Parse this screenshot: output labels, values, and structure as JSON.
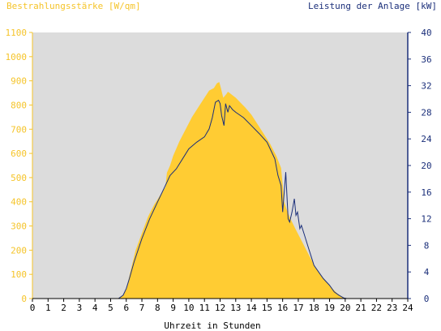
{
  "chart_data": {
    "type": "area",
    "y_left_label": "Bestrahlungsstärke [W/qm]",
    "y_right_label": "Leistung der Anlage [kW]",
    "x_label": "Uhrzeit in Stunden",
    "x_range": [
      0,
      24
    ],
    "y_left_range": [
      0,
      1100
    ],
    "y_right_range": [
      0,
      40
    ],
    "x_ticks": [
      "0",
      "1",
      "2",
      "3",
      "4",
      "5",
      "6",
      "7",
      "8",
      "9",
      "10",
      "11",
      "12",
      "13",
      "14",
      "15",
      "16",
      "17",
      "18",
      "19",
      "20",
      "21",
      "22",
      "23",
      "24"
    ],
    "y_left_ticks": [
      "0",
      "100",
      "200",
      "300",
      "400",
      "500",
      "600",
      "700",
      "800",
      "900",
      "1000",
      "1100"
    ],
    "y_right_ticks": [
      "0",
      "4",
      "8",
      "12",
      "16",
      "20",
      "24",
      "28",
      "32",
      "36",
      "40"
    ],
    "grid": false,
    "colors": {
      "background": "#dcdcdc",
      "irradiance_fill": "#ffcc33",
      "power_line": "#1b2f7a",
      "left_axis": "#f5c42a",
      "right_axis": "#1b2f7a"
    },
    "series": [
      {
        "axis": "left",
        "style": "area",
        "x": [
          0,
          5.4,
          5.6,
          5.8,
          6.0,
          6.3,
          6.6,
          7.0,
          7.4,
          7.8,
          8.2,
          8.5,
          8.6,
          8.8,
          9.0,
          9.4,
          9.8,
          10.2,
          10.6,
          11.0,
          11.3,
          11.6,
          11.8,
          11.95,
          12.05,
          12.2,
          12.4,
          12.5,
          12.6,
          12.8,
          13.0,
          13.3,
          13.6,
          14.0,
          14.4,
          14.8,
          15.2,
          15.6,
          15.9,
          16.0,
          16.1,
          16.2,
          16.3,
          16.5,
          16.8,
          17.2,
          17.6,
          18.0,
          18.4,
          18.8,
          19.2,
          19.5,
          19.8,
          20.0,
          24
        ],
        "y": [
          0,
          0,
          5,
          15,
          40,
          120,
          200,
          270,
          340,
          390,
          430,
          460,
          520,
          550,
          590,
          650,
          700,
          750,
          790,
          830,
          860,
          870,
          890,
          895,
          870,
          830,
          845,
          855,
          850,
          840,
          830,
          810,
          790,
          760,
          720,
          680,
          640,
          590,
          540,
          470,
          400,
          380,
          360,
          330,
          290,
          240,
          190,
          140,
          100,
          70,
          40,
          20,
          8,
          0,
          0
        ]
      },
      {
        "axis": "right",
        "style": "line",
        "x": [
          0,
          5.5,
          5.8,
          6.0,
          6.2,
          6.5,
          7.0,
          7.5,
          8.0,
          8.4,
          8.8,
          9.2,
          9.6,
          10.0,
          10.5,
          11.0,
          11.3,
          11.5,
          11.7,
          11.9,
          12.0,
          12.1,
          12.25,
          12.35,
          12.5,
          12.6,
          12.8,
          13.0,
          13.5,
          14.0,
          14.5,
          15.0,
          15.3,
          15.5,
          15.7,
          15.9,
          16.0,
          16.1,
          16.2,
          16.35,
          16.45,
          16.6,
          16.75,
          16.85,
          16.95,
          17.1,
          17.2,
          17.4,
          17.6,
          17.8,
          18.0,
          18.3,
          18.6,
          19.0,
          19.3,
          19.6,
          19.9,
          20.1,
          24
        ],
        "y": [
          0,
          0,
          0.5,
          1.5,
          3,
          5.5,
          9,
          12,
          14.5,
          16.5,
          18.5,
          19.5,
          21,
          22.5,
          23.5,
          24.3,
          25.5,
          27.2,
          29.5,
          29.8,
          29.3,
          27.5,
          26.0,
          29.3,
          28.0,
          29.0,
          28.4,
          28.0,
          27.2,
          26.0,
          24.8,
          23.5,
          22.0,
          21.0,
          18.5,
          17.0,
          13.0,
          16.0,
          19.0,
          12.0,
          11.5,
          13.0,
          15.0,
          12.5,
          13.0,
          10.5,
          11.0,
          9.5,
          8.0,
          6.5,
          5.0,
          4.0,
          3.0,
          2.0,
          1.0,
          0.5,
          0.1,
          0,
          0
        ]
      }
    ]
  }
}
